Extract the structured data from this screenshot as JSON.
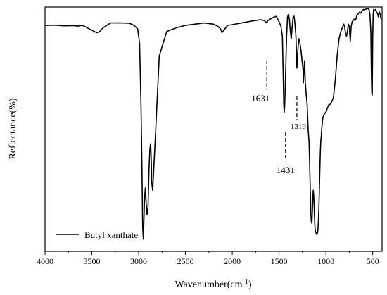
{
  "chart_data": {
    "type": "line",
    "title": "",
    "xlabel": "Wavenumber(cm",
    "xlabel_superscript": "-1",
    "xlabel_suffix": ")",
    "ylabel": "Reflectance(%)",
    "x_reversed": true,
    "xlim": [
      4000,
      400
    ],
    "ylim": [
      0,
      100
    ],
    "y_ticks_labeled": false,
    "x_ticks": [
      4000,
      3500,
      3000,
      2500,
      2000,
      1500,
      1000,
      500
    ],
    "x_tick_labels": [
      "4000",
      "3500",
      "3000",
      "2500",
      "2000",
      "1500",
      "1000",
      "500"
    ],
    "grid": false,
    "legend": {
      "placement": "bottom-left",
      "entries": [
        "Butyl xanthate"
      ]
    },
    "series": [
      {
        "name": "Butyl xanthate",
        "color": "#000000",
        "x": [
          4000,
          3900,
          3800,
          3700,
          3650,
          3600,
          3550,
          3500,
          3450,
          3420,
          3380,
          3300,
          3200,
          3100,
          3050,
          3010,
          2990,
          2975,
          2965,
          2957,
          2950,
          2940,
          2935,
          2928,
          2920,
          2910,
          2900,
          2890,
          2880,
          2872,
          2866,
          2860,
          2850,
          2820,
          2780,
          2700,
          2600,
          2500,
          2400,
          2300,
          2200,
          2150,
          2125,
          2110,
          2090,
          2050,
          2000,
          1900,
          1800,
          1700,
          1660,
          1640,
          1631,
          1620,
          1590,
          1560,
          1530,
          1500,
          1480,
          1465,
          1455,
          1450,
          1445,
          1440,
          1431,
          1420,
          1410,
          1400,
          1390,
          1380,
          1370,
          1360,
          1350,
          1340,
          1330,
          1320,
          1310,
          1300,
          1290,
          1280,
          1265,
          1255,
          1245,
          1240,
          1235,
          1228,
          1220,
          1212,
          1205,
          1200,
          1190,
          1180,
          1175,
          1170,
          1165,
          1160,
          1155,
          1150,
          1145,
          1140,
          1135,
          1130,
          1125,
          1120,
          1115,
          1110,
          1105,
          1100,
          1095,
          1090,
          1085,
          1080,
          1075,
          1070,
          1065,
          1060,
          1055,
          1050,
          1045,
          1040,
          1035,
          1030,
          1020,
          1010,
          1000,
          990,
          980,
          970,
          960,
          940,
          920,
          900,
          880,
          860,
          840,
          820,
          810,
          800,
          790,
          780,
          770,
          760,
          750,
          740,
          730,
          720,
          700,
          690,
          680,
          670,
          660,
          650,
          640,
          630,
          620,
          610,
          600,
          590,
          580,
          570,
          560,
          550,
          540,
          530,
          520,
          515,
          510,
          505,
          500,
          495,
          490,
          480,
          470,
          460,
          450,
          440,
          430,
          420,
          410
        ],
        "y": [
          92.5,
          92.6,
          92.3,
          92.4,
          92.2,
          92.5,
          91.5,
          90.5,
          89.5,
          89.8,
          91.5,
          93.5,
          93.5,
          93.4,
          92.5,
          91.0,
          85.0,
          60.0,
          35.0,
          10.0,
          5.0,
          18.0,
          23.0,
          26.0,
          20.0,
          15.0,
          18.0,
          33.0,
          42.0,
          44.0,
          38.0,
          28.0,
          25.0,
          48.0,
          80.0,
          90.0,
          91.5,
          92.5,
          93.0,
          93.5,
          93.0,
          92.0,
          91.0,
          89.5,
          90.5,
          92.5,
          92.8,
          93.5,
          94.2,
          94.8,
          94.5,
          93.8,
          93.5,
          94.5,
          95.2,
          95.8,
          96.2,
          94.0,
          92.0,
          88.0,
          70.0,
          60.0,
          57.0,
          60.0,
          72.0,
          88.0,
          96.0,
          97.0,
          95.0,
          90.0,
          87.0,
          92.0,
          96.0,
          96.3,
          93.0,
          88.0,
          75.0,
          82.0,
          87.0,
          86.0,
          82.0,
          78.0,
          75.0,
          69.0,
          74.0,
          78.0,
          69.0,
          65.0,
          62.0,
          60.0,
          50.0,
          45.0,
          38.0,
          30.0,
          22.0,
          15.0,
          12.0,
          11.5,
          16.0,
          22.0,
          25.0,
          23.0,
          18.0,
          12.0,
          9.0,
          8.0,
          7.5,
          7.0,
          7.0,
          7.5,
          9.0,
          12.0,
          18.0,
          25.0,
          33.0,
          40.0,
          45.0,
          47.0,
          50.0,
          52.0,
          54.0,
          55.0,
          56.0,
          56.5,
          57.0,
          58.0,
          59.0,
          60.0,
          60.0,
          61.0,
          63.0,
          70.0,
          80.0,
          87.0,
          90.0,
          92.0,
          93.0,
          92.0,
          89.0,
          88.0,
          90.0,
          93.0,
          92.0,
          86.0,
          92.0,
          94.0,
          95.0,
          94.5,
          95.0,
          96.5,
          97.0,
          97.5,
          98.0,
          97.5,
          98.0,
          98.5,
          99.0,
          98.8,
          99.0,
          99.2,
          99.5,
          99.3,
          99.0,
          97.0,
          90.0,
          75.0,
          65.0,
          64.0,
          88.0,
          97.0,
          99.0,
          98.5,
          99.0,
          98.0,
          97.5,
          96.0,
          98.0,
          97.0,
          95.0
        ]
      }
    ],
    "annotations": [
      {
        "label": "1631",
        "x": 1631,
        "style": "large"
      },
      {
        "label": "1431",
        "x": 1431,
        "style": "large"
      },
      {
        "label": "1310",
        "x": 1310,
        "style": "small"
      }
    ]
  }
}
